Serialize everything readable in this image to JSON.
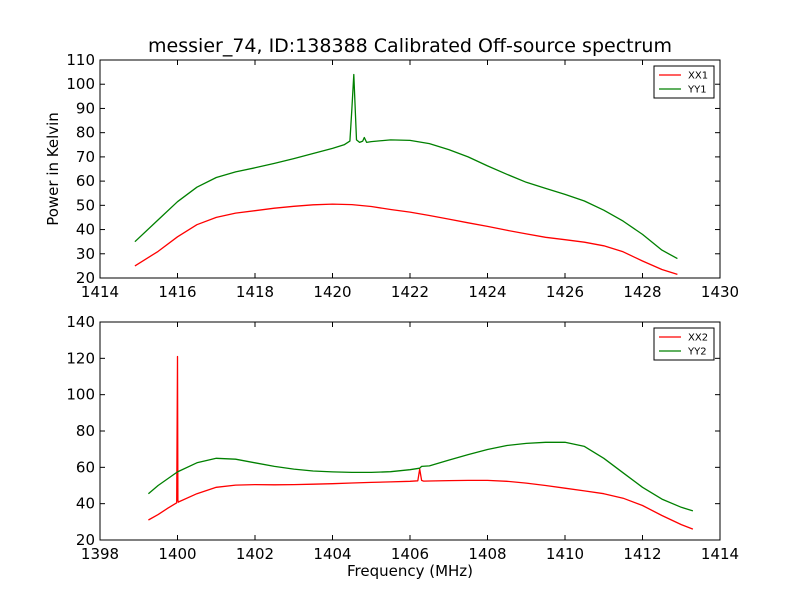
{
  "figure": {
    "title": "messier_74, ID:138388 Calibrated Off-source spectrum"
  },
  "chart_data": [
    {
      "type": "line",
      "title": "messier_74, ID:138388 Calibrated Off-source spectrum",
      "xlabel": "",
      "ylabel": "Power in Kelvin",
      "xlim": [
        1414,
        1430
      ],
      "ylim": [
        20,
        110
      ],
      "xticks": [
        "1414",
        "1416",
        "1418",
        "1420",
        "1422",
        "1424",
        "1426",
        "1428",
        "1430"
      ],
      "yticks": [
        "20",
        "30",
        "40",
        "50",
        "60",
        "70",
        "80",
        "90",
        "100",
        "110"
      ],
      "grid": false,
      "legend_position": "top-right",
      "series": [
        {
          "name": "XX1",
          "color": "#ff0000",
          "x": [
            1414.9,
            1415.5,
            1416.0,
            1416.5,
            1417.0,
            1417.5,
            1418.0,
            1418.5,
            1419.0,
            1419.5,
            1420.0,
            1420.5,
            1421.0,
            1421.5,
            1422.0,
            1422.5,
            1423.0,
            1423.5,
            1424.0,
            1424.5,
            1425.0,
            1425.5,
            1426.0,
            1426.5,
            1427.0,
            1427.5,
            1428.0,
            1428.5,
            1428.9
          ],
          "y": [
            25.0,
            31.0,
            37.0,
            42.0,
            45.0,
            46.8,
            47.8,
            48.8,
            49.6,
            50.2,
            50.5,
            50.3,
            49.5,
            48.3,
            47.2,
            45.8,
            44.3,
            42.8,
            41.3,
            39.7,
            38.2,
            36.8,
            35.8,
            34.8,
            33.3,
            30.8,
            27.0,
            23.5,
            21.5
          ]
        },
        {
          "name": "YY1",
          "color": "#008000",
          "x": [
            1414.9,
            1415.5,
            1416.0,
            1416.5,
            1417.0,
            1417.5,
            1418.0,
            1418.5,
            1419.0,
            1419.5,
            1420.0,
            1420.3,
            1420.45,
            1420.5,
            1420.55,
            1420.62,
            1420.7,
            1420.78,
            1420.82,
            1420.88,
            1421.0,
            1421.5,
            1422.0,
            1422.5,
            1423.0,
            1423.5,
            1424.0,
            1424.5,
            1425.0,
            1425.5,
            1426.0,
            1426.5,
            1427.0,
            1427.5,
            1428.0,
            1428.5,
            1428.9
          ],
          "y": [
            35.0,
            44.0,
            51.5,
            57.5,
            61.5,
            63.8,
            65.5,
            67.3,
            69.3,
            71.4,
            73.5,
            75.0,
            76.5,
            90.0,
            104.0,
            77.0,
            76.0,
            76.5,
            78.0,
            76.0,
            76.3,
            77.0,
            76.8,
            75.5,
            73.0,
            70.0,
            66.3,
            62.8,
            59.5,
            57.0,
            54.5,
            51.8,
            48.0,
            43.5,
            38.0,
            31.5,
            28.0
          ]
        }
      ]
    },
    {
      "type": "line",
      "title": "",
      "xlabel": "Frequency (MHz)",
      "ylabel": "",
      "xlim": [
        1398,
        1414
      ],
      "ylim": [
        20,
        140
      ],
      "xticks": [
        "1398",
        "1400",
        "1402",
        "1404",
        "1406",
        "1408",
        "1410",
        "1412",
        "1414"
      ],
      "yticks": [
        "20",
        "40",
        "60",
        "80",
        "100",
        "120",
        "140"
      ],
      "grid": false,
      "legend_position": "top-right",
      "series": [
        {
          "name": "XX2",
          "color": "#ff0000",
          "x": [
            1399.25,
            1399.5,
            1399.75,
            1399.98,
            1400.0,
            1400.01,
            1400.02,
            1400.03,
            1400.5,
            1401.0,
            1401.5,
            1402.0,
            1402.5,
            1403.0,
            1403.5,
            1404.0,
            1404.5,
            1405.0,
            1405.5,
            1406.0,
            1406.2,
            1406.25,
            1406.3,
            1406.35,
            1406.5,
            1407.0,
            1407.5,
            1408.0,
            1408.5,
            1409.0,
            1409.5,
            1410.0,
            1410.5,
            1411.0,
            1411.5,
            1412.0,
            1412.5,
            1413.0,
            1413.3
          ],
          "y": [
            31.0,
            34.0,
            37.5,
            40.5,
            121.0,
            42.0,
            40.8,
            41.0,
            45.5,
            49.0,
            50.2,
            50.5,
            50.4,
            50.5,
            50.7,
            51.0,
            51.4,
            51.7,
            52.0,
            52.3,
            52.6,
            59.0,
            52.8,
            52.4,
            52.5,
            52.7,
            52.8,
            52.8,
            52.3,
            51.3,
            50.0,
            48.5,
            47.0,
            45.5,
            43.0,
            39.0,
            33.5,
            28.5,
            26.0
          ]
        },
        {
          "name": "YY2",
          "color": "#008000",
          "x": [
            1399.25,
            1399.5,
            1400.0,
            1400.5,
            1401.0,
            1401.5,
            1402.0,
            1402.5,
            1403.0,
            1403.5,
            1404.0,
            1404.5,
            1405.0,
            1405.5,
            1406.0,
            1406.25,
            1406.3,
            1406.5,
            1407.0,
            1407.5,
            1408.0,
            1408.5,
            1409.0,
            1409.5,
            1410.0,
            1410.5,
            1411.0,
            1411.5,
            1412.0,
            1412.5,
            1413.0,
            1413.3
          ],
          "y": [
            45.5,
            50.0,
            57.5,
            62.5,
            65.0,
            64.5,
            62.5,
            60.5,
            59.0,
            58.0,
            57.5,
            57.2,
            57.2,
            57.6,
            58.7,
            59.5,
            60.5,
            60.8,
            64.0,
            67.0,
            69.8,
            72.0,
            73.2,
            73.8,
            73.8,
            71.5,
            65.0,
            57.0,
            49.0,
            42.5,
            38.0,
            36.0
          ]
        }
      ]
    }
  ]
}
